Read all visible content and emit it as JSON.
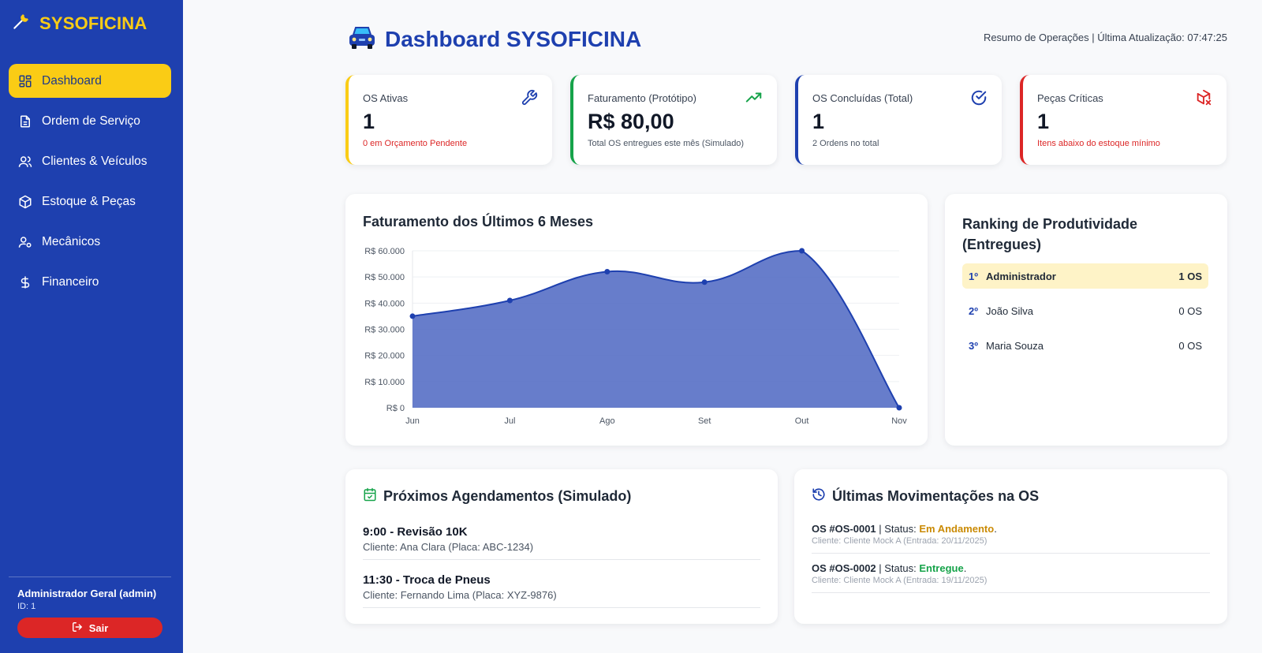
{
  "app": {
    "name": "SYSOFICINA"
  },
  "colors": {
    "primary": "#1e40af",
    "accent": "#facc15",
    "danger": "#dc2626",
    "success": "#16a34a",
    "warning": "#ca8a04"
  },
  "sidebar": {
    "items": [
      {
        "label": "Dashboard",
        "icon": "dashboard-icon",
        "active": true
      },
      {
        "label": "Ordem de Serviço",
        "icon": "document-icon"
      },
      {
        "label": "Clientes & Veículos",
        "icon": "users-icon"
      },
      {
        "label": "Estoque & Peças",
        "icon": "box-icon"
      },
      {
        "label": "Mecânicos",
        "icon": "user-gear-icon"
      },
      {
        "label": "Financeiro",
        "icon": "dollar-icon"
      }
    ],
    "user": {
      "name": "Administrador Geral (admin)",
      "id": "ID: 1"
    },
    "logout_label": "Sair"
  },
  "header": {
    "title": "Dashboard SYSOFICINA",
    "status": "Resumo de Operações | Última Atualização: 07:47:25"
  },
  "kpis": [
    {
      "label": "OS Ativas",
      "value": "1",
      "sub": "0 em Orçamento Pendente",
      "color": "#facc15",
      "sub_color": "#dc2626",
      "icon": "wrench-icon"
    },
    {
      "label": "Faturamento (Protótipo)",
      "value": "R$ 80,00",
      "sub": "Total OS entregues este mês (Simulado)",
      "color": "#16a34a",
      "sub_color": "#4b5563",
      "icon": "trending-up-icon"
    },
    {
      "label": "OS Concluídas (Total)",
      "value": "1",
      "sub": "2 Ordens no total",
      "color": "#1e40af",
      "sub_color": "#4b5563",
      "icon": "check-circle-icon"
    },
    {
      "label": "Peças Críticas",
      "value": "1",
      "sub": "Itens abaixo do estoque mínimo",
      "color": "#dc2626",
      "sub_color": "#dc2626",
      "icon": "box-x-icon"
    }
  ],
  "chart_data": {
    "type": "area",
    "title": "Faturamento dos Últimos 6 Meses",
    "categories": [
      "Jun",
      "Jul",
      "Ago",
      "Set",
      "Out",
      "Nov"
    ],
    "values": [
      35000,
      41000,
      52000,
      48000,
      60000,
      0
    ],
    "ylim": [
      0,
      60000
    ],
    "yticks": [
      0,
      10000,
      20000,
      30000,
      40000,
      50000,
      60000
    ],
    "ytick_labels": [
      "R$ 0",
      "R$ 10.000",
      "R$ 20.000",
      "R$ 30.000",
      "R$ 40.000",
      "R$ 50.000",
      "R$ 60.000"
    ],
    "grid": true,
    "fill_color": "#5a72c7",
    "line_color": "#1e40af"
  },
  "ranking": {
    "title": "Ranking de Produtividade (Entregues)",
    "rows": [
      {
        "pos": "1º",
        "name": "Administrador",
        "count": "1 OS"
      },
      {
        "pos": "2º",
        "name": "João Silva",
        "count": "0 OS"
      },
      {
        "pos": "3º",
        "name": "Maria Souza",
        "count": "0 OS"
      }
    ]
  },
  "schedule": {
    "title": "Próximos Agendamentos (Simulado)",
    "items": [
      {
        "title": "9:00 - Revisão 10K",
        "sub": "Cliente: Ana Clara (Placa: ABC-1234)"
      },
      {
        "title": "11:30 - Troca de Pneus",
        "sub": "Cliente: Fernando Lima (Placa: XYZ-9876)"
      }
    ]
  },
  "movements": {
    "title": "Últimas Movimentações na OS",
    "items": [
      {
        "os": "OS #OS-0001",
        "status_prefix": " | Status: ",
        "status": "Em Andamento",
        "status_color": "#ca8a04",
        "sub": "Cliente: Cliente Mock A (Entrada: 20/11/2025)"
      },
      {
        "os": "OS #OS-0002",
        "status_prefix": " | Status: ",
        "status": "Entregue",
        "status_color": "#16a34a",
        "sub": "Cliente: Cliente Mock A (Entrada: 19/11/2025)"
      }
    ]
  }
}
